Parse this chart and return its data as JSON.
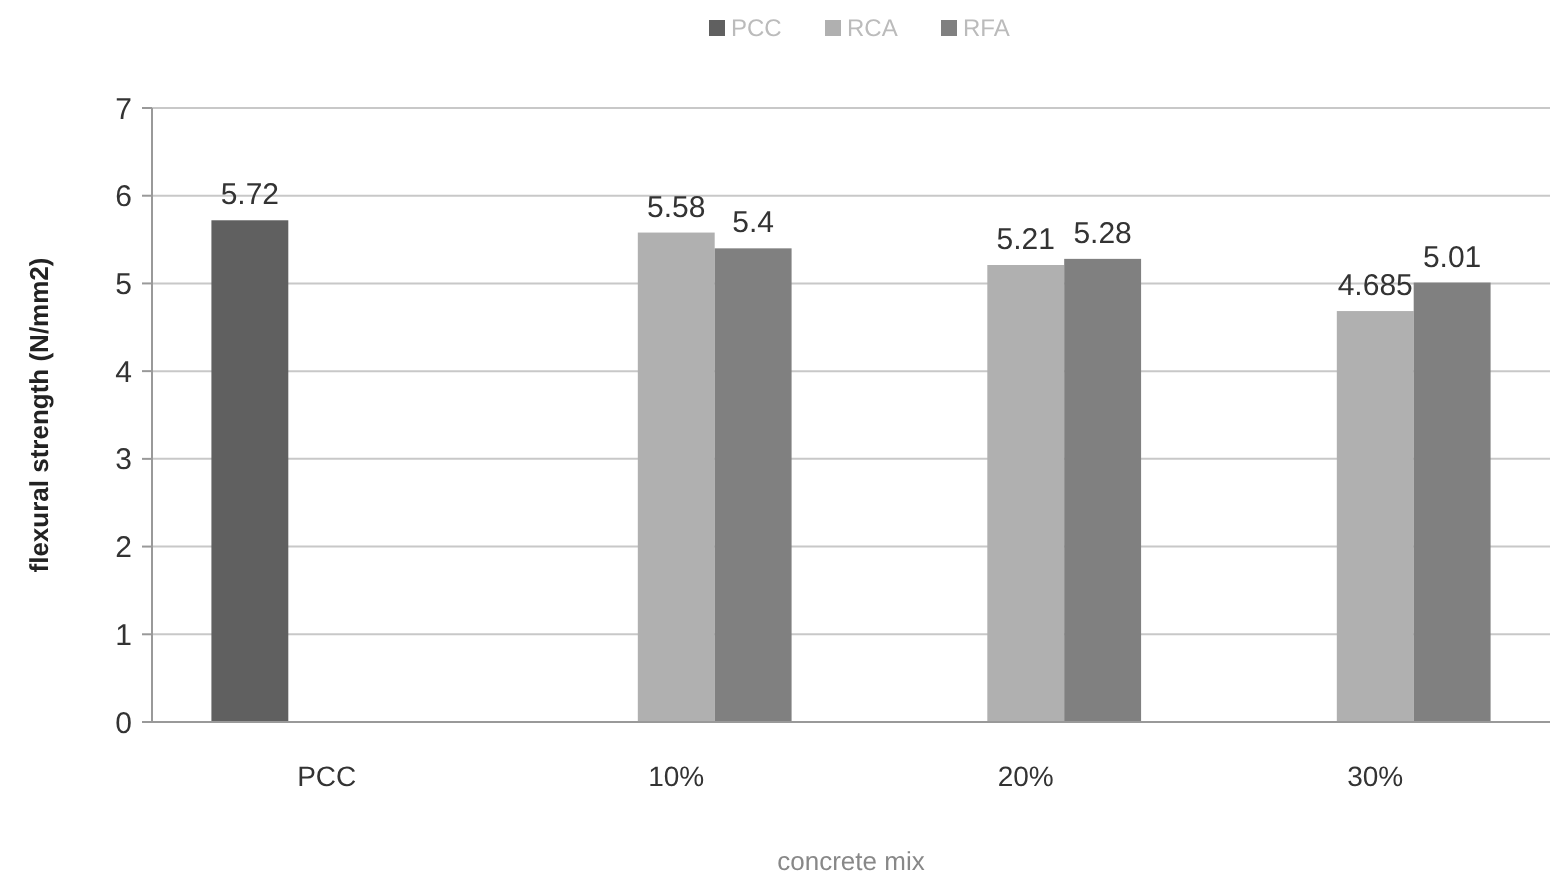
{
  "chart_data": {
    "type": "bar",
    "xlabel": "concrete mix",
    "ylabel": "flexural strength (N/mm2)",
    "categories": [
      "PCC",
      "10%",
      "20%",
      "30%"
    ],
    "series": [
      {
        "name": "PCC",
        "color": "#606060",
        "values": [
          5.72,
          null,
          null,
          null
        ]
      },
      {
        "name": "RCA",
        "color": "#b0b0b0",
        "values": [
          null,
          5.58,
          5.21,
          4.685
        ]
      },
      {
        "name": "RFA",
        "color": "#808080",
        "values": [
          null,
          5.4,
          5.28,
          5.01
        ]
      }
    ],
    "ylim": [
      0,
      7
    ],
    "yticks": [
      0,
      1,
      2,
      3,
      4,
      5,
      6,
      7
    ],
    "grid": "y",
    "legend": "top",
    "data_labels": true
  }
}
